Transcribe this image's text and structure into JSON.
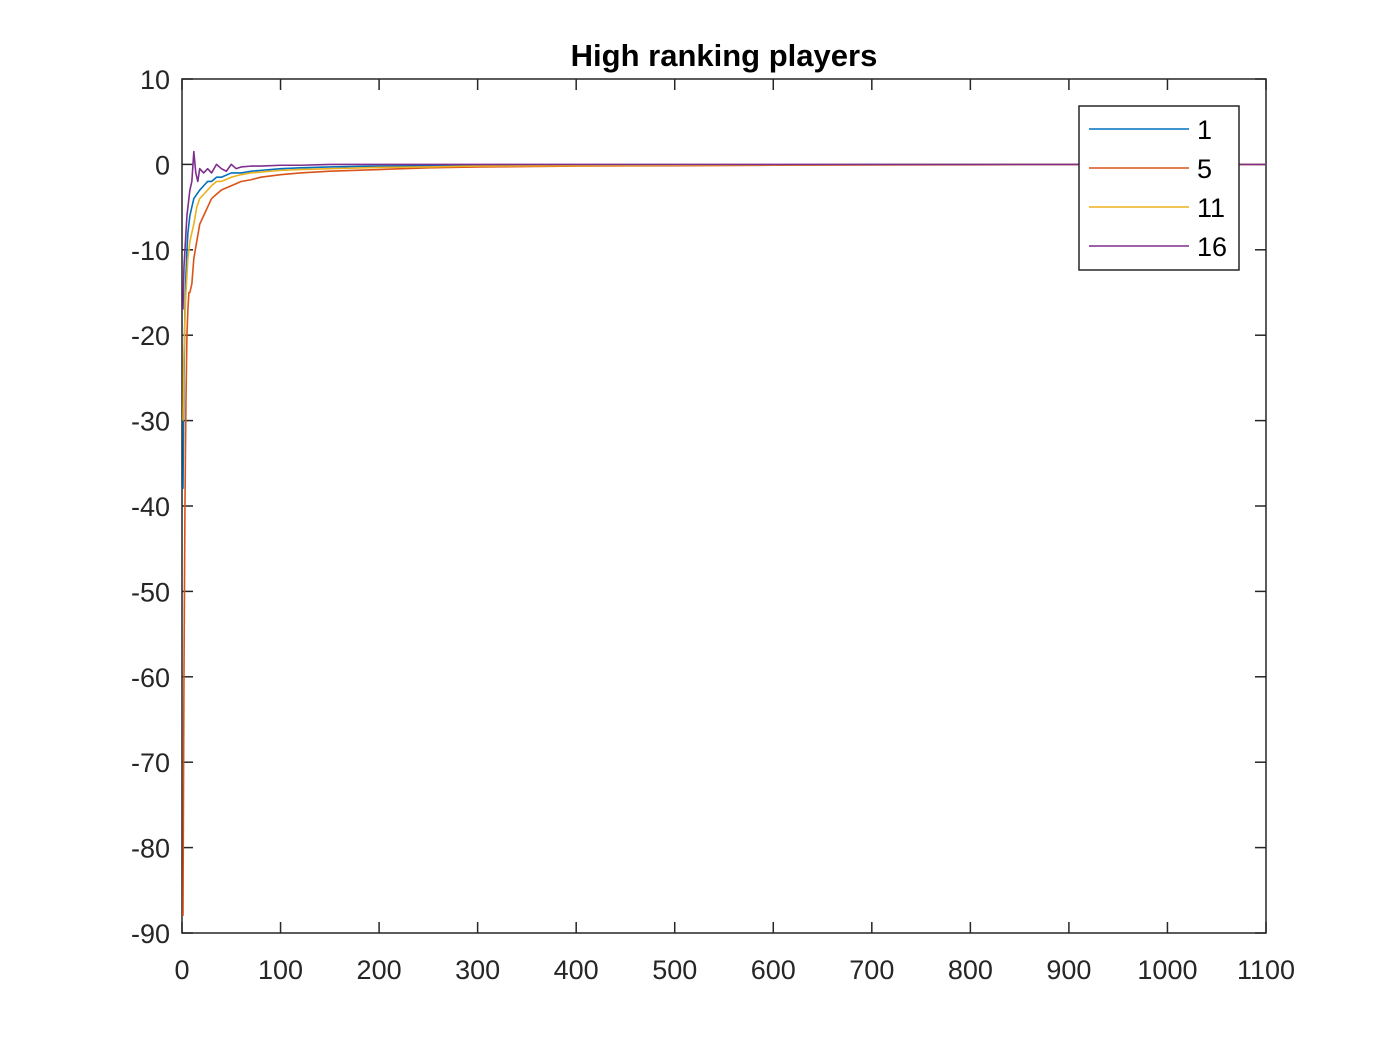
{
  "chart_data": {
    "type": "line",
    "title": "High ranking players",
    "xlabel": "",
    "ylabel": "",
    "xlim": [
      0,
      1100
    ],
    "ylim": [
      -90,
      10
    ],
    "xticks": [
      0,
      100,
      200,
      300,
      400,
      500,
      600,
      700,
      800,
      900,
      1000,
      1100
    ],
    "yticks": [
      10,
      0,
      -10,
      -20,
      -30,
      -40,
      -50,
      -60,
      -70,
      -80,
      -90
    ],
    "grid": false,
    "legend_position": "top-right",
    "series": [
      {
        "name": "1",
        "color": "#0072BD",
        "points": [
          [
            1,
            -38
          ],
          [
            2,
            -25
          ],
          [
            3,
            -17
          ],
          [
            4,
            -13
          ],
          [
            5,
            -10
          ],
          [
            6,
            -8
          ],
          [
            8,
            -6
          ],
          [
            10,
            -5
          ],
          [
            12,
            -4
          ],
          [
            15,
            -3.5
          ],
          [
            18,
            -3
          ],
          [
            22,
            -2.5
          ],
          [
            26,
            -2
          ],
          [
            30,
            -2
          ],
          [
            35,
            -1.5
          ],
          [
            40,
            -1.5
          ],
          [
            50,
            -1
          ],
          [
            60,
            -1
          ],
          [
            70,
            -0.8
          ],
          [
            80,
            -0.7
          ],
          [
            100,
            -0.5
          ],
          [
            120,
            -0.4
          ],
          [
            150,
            -0.3
          ],
          [
            200,
            -0.2
          ],
          [
            250,
            -0.15
          ],
          [
            300,
            -0.1
          ],
          [
            400,
            -0.1
          ],
          [
            500,
            -0.05
          ],
          [
            600,
            -0.05
          ],
          [
            800,
            0
          ],
          [
            1000,
            0
          ],
          [
            1100,
            0
          ]
        ]
      },
      {
        "name": "5",
        "color": "#D95319",
        "points": [
          [
            1,
            -88
          ],
          [
            2,
            -60
          ],
          [
            3,
            -40
          ],
          [
            4,
            -28
          ],
          [
            5,
            -20
          ],
          [
            6,
            -17
          ],
          [
            7,
            -15
          ],
          [
            8,
            -15
          ],
          [
            10,
            -14
          ],
          [
            12,
            -11
          ],
          [
            15,
            -9
          ],
          [
            18,
            -7
          ],
          [
            22,
            -6
          ],
          [
            26,
            -5
          ],
          [
            30,
            -4
          ],
          [
            35,
            -3.5
          ],
          [
            40,
            -3
          ],
          [
            50,
            -2.5
          ],
          [
            60,
            -2
          ],
          [
            70,
            -1.8
          ],
          [
            80,
            -1.5
          ],
          [
            100,
            -1.2
          ],
          [
            120,
            -1
          ],
          [
            150,
            -0.8
          ],
          [
            200,
            -0.6
          ],
          [
            250,
            -0.4
          ],
          [
            300,
            -0.3
          ],
          [
            400,
            -0.2
          ],
          [
            500,
            -0.15
          ],
          [
            600,
            -0.1
          ],
          [
            800,
            -0.05
          ],
          [
            1000,
            0
          ],
          [
            1100,
            0
          ]
        ]
      },
      {
        "name": "11",
        "color": "#EDB120",
        "points": [
          [
            1,
            -30
          ],
          [
            2,
            -22
          ],
          [
            3,
            -18
          ],
          [
            4,
            -15
          ],
          [
            5,
            -13
          ],
          [
            6,
            -11
          ],
          [
            8,
            -9
          ],
          [
            10,
            -8
          ],
          [
            12,
            -7
          ],
          [
            15,
            -5
          ],
          [
            18,
            -4
          ],
          [
            22,
            -3.5
          ],
          [
            26,
            -3
          ],
          [
            30,
            -2.5
          ],
          [
            35,
            -2
          ],
          [
            40,
            -2
          ],
          [
            50,
            -1.5
          ],
          [
            60,
            -1.2
          ],
          [
            70,
            -1
          ],
          [
            80,
            -0.9
          ],
          [
            100,
            -0.7
          ],
          [
            120,
            -0.6
          ],
          [
            150,
            -0.5
          ],
          [
            200,
            -0.35
          ],
          [
            250,
            -0.3
          ],
          [
            300,
            -0.2
          ],
          [
            400,
            -0.15
          ],
          [
            500,
            -0.1
          ],
          [
            600,
            -0.05
          ],
          [
            800,
            0
          ],
          [
            1000,
            0
          ],
          [
            1100,
            0
          ]
        ]
      },
      {
        "name": "16",
        "color": "#7E2F8E",
        "points": [
          [
            1,
            -17
          ],
          [
            2,
            -12
          ],
          [
            3,
            -10
          ],
          [
            4,
            -8
          ],
          [
            5,
            -6
          ],
          [
            6,
            -5
          ],
          [
            8,
            -3
          ],
          [
            10,
            -2
          ],
          [
            12,
            1.5
          ],
          [
            14,
            -1
          ],
          [
            16,
            -2
          ],
          [
            18,
            -0.5
          ],
          [
            22,
            -1
          ],
          [
            26,
            -0.5
          ],
          [
            30,
            -1
          ],
          [
            35,
            0
          ],
          [
            40,
            -0.5
          ],
          [
            45,
            -0.8
          ],
          [
            50,
            0
          ],
          [
            55,
            -0.5
          ],
          [
            60,
            -0.3
          ],
          [
            70,
            -0.2
          ],
          [
            80,
            -0.2
          ],
          [
            100,
            -0.1
          ],
          [
            120,
            -0.1
          ],
          [
            150,
            0
          ],
          [
            200,
            0
          ],
          [
            300,
            0
          ],
          [
            400,
            0
          ],
          [
            600,
            0
          ],
          [
            800,
            0
          ],
          [
            1000,
            0
          ],
          [
            1100,
            0
          ]
        ]
      }
    ]
  }
}
